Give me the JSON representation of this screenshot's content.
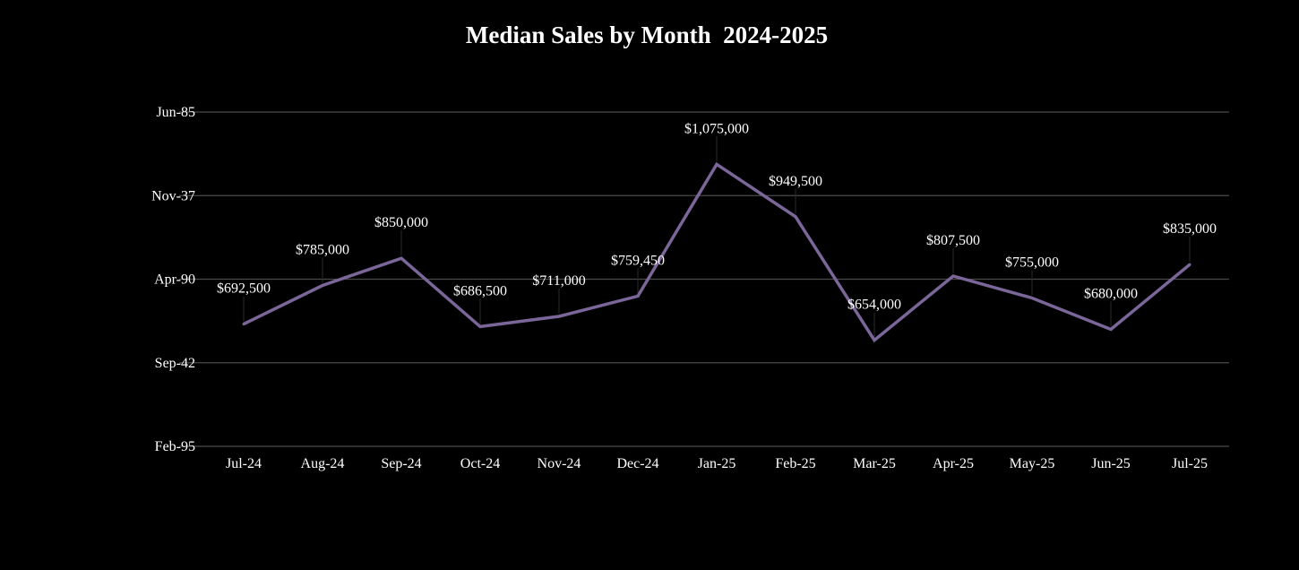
{
  "chart_data": {
    "type": "line",
    "title": "Median Sales by Month  2024-2025",
    "xlabel": "",
    "ylabel": "",
    "categories": [
      "Jul-24",
      "Aug-24",
      "Sep-24",
      "Oct-24",
      "Nov-24",
      "Dec-24",
      "Jan-25",
      "Feb-25",
      "Mar-25",
      "Apr-25",
      "May-25",
      "Jun-25",
      "Jul-25"
    ],
    "series": [
      {
        "values": [
          692500,
          785000,
          850000,
          686500,
          711000,
          759450,
          1075000,
          949500,
          654000,
          807500,
          755000,
          680000,
          835000
        ],
        "labels": [
          "$692,500",
          "$785,000",
          "$850,000",
          "$686,500",
          "$711,000",
          "$759,450",
          "$1,075,000",
          "$949,500",
          "$654,000",
          "$807,500",
          "$755,000",
          "$680,000",
          "$835,000"
        ],
        "color": "#7b6699"
      }
    ],
    "y_tick_labels": [
      "Feb-95",
      "Sep-42",
      "Apr-90",
      "Nov-37",
      "Jun-85"
    ],
    "ylim": [
      400000,
      1200000
    ],
    "grid": true,
    "legend": "none",
    "background": "#000000",
    "gridline_color": "#4a4a4a",
    "text_color": "#ffffff"
  }
}
